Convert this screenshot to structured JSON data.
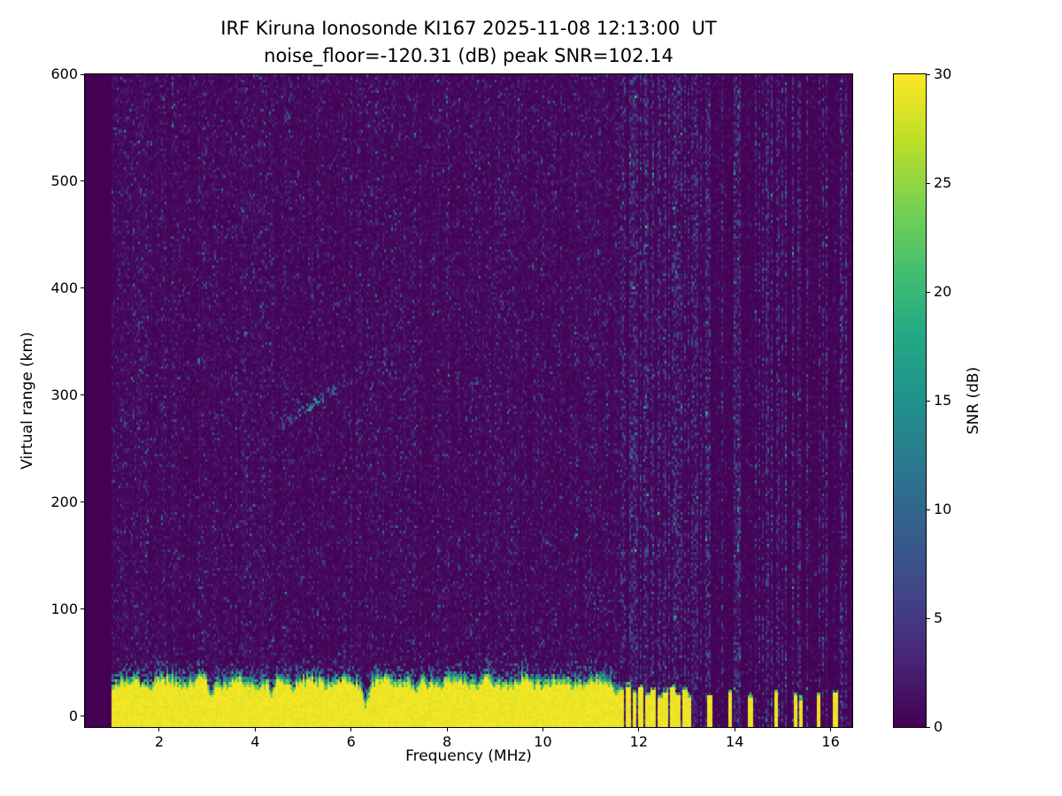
{
  "figure": {
    "title_line1": "IRF Kiruna Ionosonde KI167 2025-11-08 12:13:00  UT",
    "title_line2": "noise_floor=-120.31 (dB) peak SNR=102.14",
    "background": "#ffffff"
  },
  "chart_data": {
    "type": "heatmap",
    "title": "IRF Kiruna Ionosonde KI167 2025-11-08 12:13:00  UT",
    "subtitle": "noise_floor=-120.31 (dB) peak SNR=102.14",
    "xlabel": "Frequency (MHz)",
    "ylabel": "Virtual range (km)",
    "colorbar_label": "SNR (dB)",
    "noise_floor_db": -120.31,
    "peak_snr_db": 102.14,
    "station": "IRF Kiruna Ionosonde KI167",
    "timestamp_ut": "2025-11-08 12:13:00",
    "xlim": [
      0.45,
      16.45
    ],
    "ylim": [
      -10,
      600
    ],
    "clim": [
      0,
      30
    ],
    "xticks": [
      2,
      4,
      6,
      8,
      10,
      12,
      14,
      16
    ],
    "yticks": [
      0,
      100,
      200,
      300,
      400,
      500,
      600
    ],
    "cticks": [
      0,
      5,
      10,
      15,
      20,
      25,
      30
    ],
    "grid": false,
    "colormap": {
      "name": "viridis",
      "stops": [
        [
          0.0,
          "#440154"
        ],
        [
          0.1,
          "#482475"
        ],
        [
          0.2,
          "#414487"
        ],
        [
          0.3,
          "#355f8d"
        ],
        [
          0.4,
          "#2a788e"
        ],
        [
          0.5,
          "#21918c"
        ],
        [
          0.6,
          "#22a884"
        ],
        [
          0.7,
          "#44bf70"
        ],
        [
          0.8,
          "#7ad151"
        ],
        [
          0.9,
          "#bddf26"
        ],
        [
          1.0,
          "#fde725"
        ]
      ]
    },
    "sweep": {
      "start": 1.0,
      "end": 16.45
    },
    "ground_clutter": {
      "max_freq": 11.62,
      "top_km_base": 26,
      "top_km_jitter": 8,
      "notches": [
        {
          "freq": 3.08,
          "depth_km": 13,
          "width": 0.06
        },
        {
          "freq": 4.33,
          "depth_km": 12,
          "width": 0.07
        },
        {
          "freq": 6.3,
          "depth_km": 19,
          "width": 0.07
        },
        {
          "freq": 7.33,
          "depth_km": 11,
          "width": 0.06
        },
        {
          "freq": 9.0,
          "depth_km": 7,
          "width": 0.05
        },
        {
          "freq": 10.45,
          "depth_km": 6,
          "width": 0.05
        },
        {
          "freq": 11.55,
          "depth_km": 8,
          "width": 0.05
        }
      ]
    },
    "hf_bars": [
      {
        "freq": 11.66,
        "w": 0.05,
        "h": 24
      },
      {
        "freq": 11.79,
        "w": 0.05,
        "h": 28
      },
      {
        "freq": 11.92,
        "w": 0.05,
        "h": 22
      },
      {
        "freq": 12.05,
        "w": 0.05,
        "h": 26
      },
      {
        "freq": 12.18,
        "w": 0.05,
        "h": 20
      },
      {
        "freq": 12.31,
        "w": 0.05,
        "h": 25
      },
      {
        "freq": 12.44,
        "w": 0.05,
        "h": 18
      },
      {
        "freq": 12.57,
        "w": 0.05,
        "h": 23
      },
      {
        "freq": 12.7,
        "w": 0.05,
        "h": 26
      },
      {
        "freq": 12.83,
        "w": 0.05,
        "h": 20
      },
      {
        "freq": 12.96,
        "w": 0.05,
        "h": 24
      },
      {
        "freq": 13.07,
        "w": 0.04,
        "h": 18
      },
      {
        "freq": 13.48,
        "w": 0.04,
        "h": 20
      },
      {
        "freq": 13.9,
        "w": 0.04,
        "h": 22
      },
      {
        "freq": 14.33,
        "w": 0.04,
        "h": 18
      },
      {
        "freq": 14.85,
        "w": 0.04,
        "h": 21
      },
      {
        "freq": 15.28,
        "w": 0.04,
        "h": 19
      },
      {
        "freq": 15.38,
        "w": 0.04,
        "h": 16
      },
      {
        "freq": 15.75,
        "w": 0.04,
        "h": 20
      },
      {
        "freq": 16.1,
        "w": 0.04,
        "h": 22
      }
    ],
    "interference_hf": {
      "start": 11.62,
      "dense_until": 13.15,
      "dense_fraction": 0.7,
      "sparse_fraction": 0.35
    },
    "echo_trace": {
      "f_start": 4.55,
      "r_start": 272,
      "f_end": 7.2,
      "r_end": 352,
      "peak_freq": 5.2,
      "sigma": 0.55,
      "max_db": 16
    },
    "noise_seed": 42
  }
}
